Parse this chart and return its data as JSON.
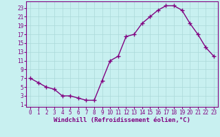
{
  "x_values": [
    0,
    1,
    2,
    3,
    4,
    5,
    6,
    7,
    8,
    9,
    10,
    11,
    12,
    13,
    14,
    15,
    16,
    17,
    18,
    19,
    20,
    21,
    22,
    23
  ],
  "y_values": [
    7,
    6,
    5,
    4.5,
    3,
    3,
    2.5,
    2,
    2,
    6.5,
    11,
    12,
    16.5,
    17,
    19.5,
    21,
    22.5,
    23.5,
    23.5,
    22.5,
    19.5,
    17,
    14,
    12
  ],
  "line_color": "#800080",
  "marker_color": "#800080",
  "bg_color": "#c8f0f0",
  "grid_color": "#aad8d8",
  "axis_color": "#800080",
  "xlabel": "Windchill (Refroidissement éolien,°C)",
  "xlim": [
    -0.5,
    23.5
  ],
  "ylim": [
    0.5,
    24.5
  ],
  "xticks": [
    0,
    1,
    2,
    3,
    4,
    5,
    6,
    7,
    8,
    9,
    10,
    11,
    12,
    13,
    14,
    15,
    16,
    17,
    18,
    19,
    20,
    21,
    22,
    23
  ],
  "yticks": [
    1,
    3,
    5,
    7,
    9,
    11,
    13,
    15,
    17,
    19,
    21,
    23
  ],
  "tick_fontsize": 5.5,
  "xlabel_fontsize": 6.5
}
